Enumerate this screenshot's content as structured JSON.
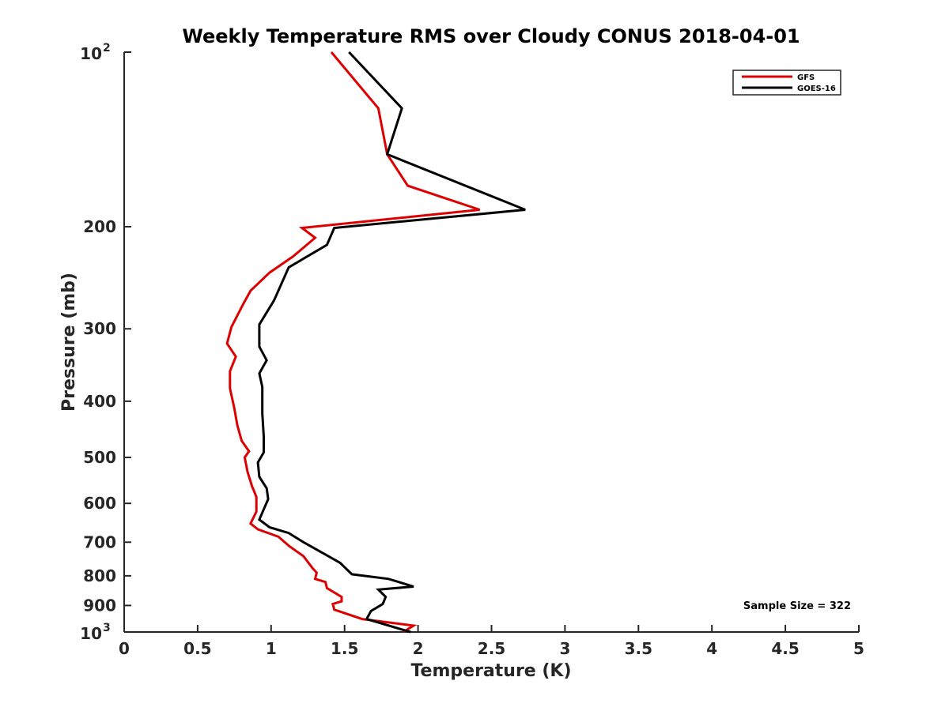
{
  "chart_data": {
    "type": "line",
    "title": "Weekly Temperature RMS over Cloudy CONUS 2018-04-01",
    "xlabel": "Temperature (K)",
    "ylabel": "Pressure (mb)",
    "xlim": [
      0,
      5
    ],
    "ylim": [
      100,
      1000
    ],
    "y_scale": "log",
    "y_reversed": true,
    "grid": false,
    "x_ticks": [
      {
        "value": 0,
        "label": "0"
      },
      {
        "value": 0.5,
        "label": "0.5"
      },
      {
        "value": 1,
        "label": "1"
      },
      {
        "value": 1.5,
        "label": "1.5"
      },
      {
        "value": 2,
        "label": "2"
      },
      {
        "value": 2.5,
        "label": "2.5"
      },
      {
        "value": 3,
        "label": "3"
      },
      {
        "value": 3.5,
        "label": "3.5"
      },
      {
        "value": 4,
        "label": "4"
      },
      {
        "value": 4.5,
        "label": "4.5"
      },
      {
        "value": 5,
        "label": "5"
      }
    ],
    "y_ticks": [
      {
        "value": 100,
        "base": "10",
        "exp": "2"
      },
      {
        "value": 200,
        "label": "200"
      },
      {
        "value": 300,
        "label": "300"
      },
      {
        "value": 400,
        "label": "400"
      },
      {
        "value": 500,
        "label": "500"
      },
      {
        "value": 600,
        "label": "600"
      },
      {
        "value": 700,
        "label": "700"
      },
      {
        "value": 800,
        "label": "800"
      },
      {
        "value": 900,
        "label": "900"
      },
      {
        "value": 1000,
        "base": "10",
        "exp": "3"
      }
    ],
    "legend_position": "top-right",
    "annotation": "Sample Size = 322",
    "series": [
      {
        "name": "GFS",
        "color": "#dd0000",
        "points": [
          [
            1.41,
            100
          ],
          [
            1.73,
            125
          ],
          [
            1.79,
            150
          ],
          [
            1.93,
            170
          ],
          [
            2.42,
            187
          ],
          [
            1.21,
            201
          ],
          [
            1.3,
            209
          ],
          [
            1.15,
            225
          ],
          [
            0.99,
            240
          ],
          [
            0.86,
            258
          ],
          [
            0.81,
            272
          ],
          [
            0.73,
            298
          ],
          [
            0.7,
            318
          ],
          [
            0.76,
            335
          ],
          [
            0.72,
            355
          ],
          [
            0.72,
            380
          ],
          [
            0.75,
            412
          ],
          [
            0.77,
            440
          ],
          [
            0.8,
            468
          ],
          [
            0.85,
            488
          ],
          [
            0.82,
            500
          ],
          [
            0.84,
            530
          ],
          [
            0.87,
            560
          ],
          [
            0.9,
            585
          ],
          [
            0.9,
            620
          ],
          [
            0.86,
            650
          ],
          [
            0.91,
            665
          ],
          [
            1.05,
            685
          ],
          [
            1.12,
            710
          ],
          [
            1.22,
            740
          ],
          [
            1.28,
            775
          ],
          [
            1.31,
            790
          ],
          [
            1.3,
            810
          ],
          [
            1.37,
            820
          ],
          [
            1.38,
            840
          ],
          [
            1.48,
            870
          ],
          [
            1.48,
            885
          ],
          [
            1.42,
            895
          ],
          [
            1.43,
            915
          ],
          [
            1.62,
            950
          ],
          [
            1.97,
            975
          ],
          [
            1.9,
            1000
          ]
        ]
      },
      {
        "name": "GOES-16",
        "color": "#000000",
        "points": [
          [
            1.53,
            100
          ],
          [
            1.89,
            125
          ],
          [
            1.79,
            150
          ],
          [
            2.73,
            187
          ],
          [
            1.43,
            201
          ],
          [
            1.38,
            215
          ],
          [
            1.12,
            235
          ],
          [
            1.02,
            268
          ],
          [
            0.92,
            295
          ],
          [
            0.92,
            322
          ],
          [
            0.97,
            340
          ],
          [
            0.92,
            358
          ],
          [
            0.94,
            378
          ],
          [
            0.94,
            420
          ],
          [
            0.95,
            460
          ],
          [
            0.95,
            490
          ],
          [
            0.91,
            510
          ],
          [
            0.92,
            540
          ],
          [
            0.97,
            565
          ],
          [
            0.98,
            590
          ],
          [
            0.92,
            640
          ],
          [
            0.99,
            660
          ],
          [
            1.12,
            675
          ],
          [
            1.22,
            700
          ],
          [
            1.37,
            735
          ],
          [
            1.47,
            760
          ],
          [
            1.55,
            795
          ],
          [
            1.8,
            810
          ],
          [
            1.97,
            835
          ],
          [
            1.73,
            845
          ],
          [
            1.78,
            870
          ],
          [
            1.76,
            895
          ],
          [
            1.68,
            920
          ],
          [
            1.65,
            950
          ],
          [
            1.86,
            985
          ],
          [
            1.95,
            1000
          ]
        ]
      }
    ]
  }
}
